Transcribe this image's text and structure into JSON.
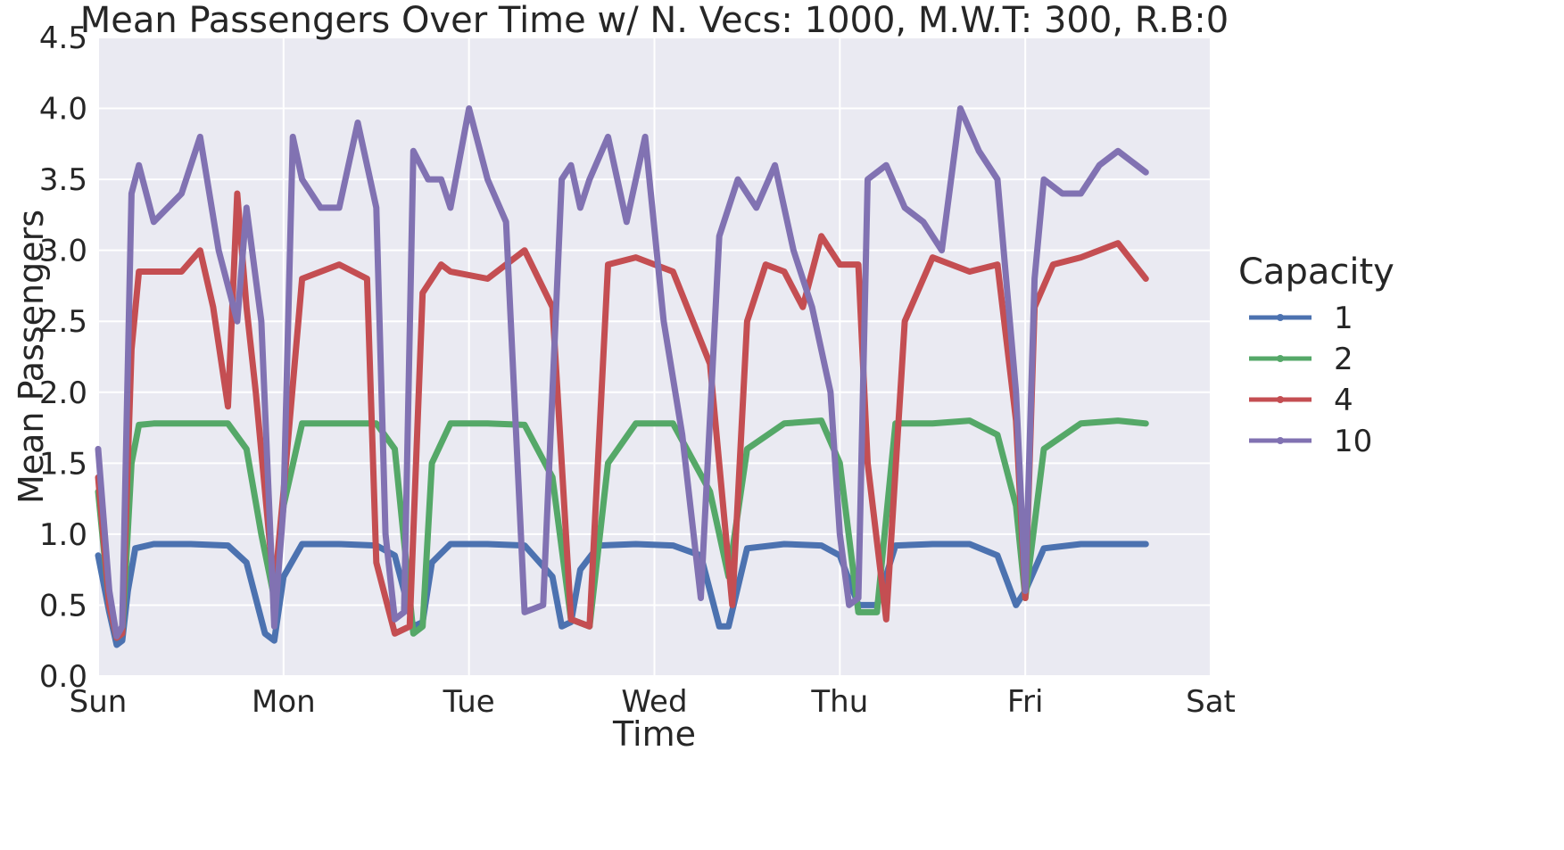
{
  "chart_data": {
    "type": "line",
    "title": "Mean Passengers Over Time w/ N. Vecs: 1000, M.W.T: 300, R.B:0",
    "xlabel": "Time",
    "ylabel": "Mean Passengers",
    "x_ticks": [
      "Sun",
      "Mon",
      "Tue",
      "Wed",
      "Thu",
      "Fri",
      "Sat"
    ],
    "xlim": [
      0,
      6
    ],
    "ylim": [
      0,
      4.5
    ],
    "y_ticks": [
      "0.0",
      "0.5",
      "1.0",
      "1.5",
      "2.0",
      "2.5",
      "3.0",
      "3.5",
      "4.0",
      "4.5"
    ],
    "grid": true,
    "legend": {
      "title": "Capacity",
      "placement": "right",
      "entries": [
        "1",
        "2",
        "4",
        "10"
      ]
    },
    "series": [
      {
        "name": "1",
        "color": "#4c72b0",
        "x": [
          0,
          0.06,
          0.1,
          0.13,
          0.16,
          0.2,
          0.3,
          0.5,
          0.7,
          0.8,
          0.9,
          0.95,
          1.0,
          1.1,
          1.3,
          1.5,
          1.6,
          1.7,
          1.75,
          1.8,
          1.9,
          2.1,
          2.3,
          2.45,
          2.5,
          2.55,
          2.6,
          2.7,
          2.9,
          3.1,
          3.25,
          3.35,
          3.4,
          3.5,
          3.7,
          3.9,
          4.0,
          4.1,
          4.2,
          4.3,
          4.5,
          4.7,
          4.85,
          4.95,
          5.0,
          5.1,
          5.3,
          5.5,
          5.65
        ],
        "y": [
          0.85,
          0.45,
          0.22,
          0.25,
          0.6,
          0.9,
          0.93,
          0.93,
          0.92,
          0.8,
          0.3,
          0.25,
          0.7,
          0.93,
          0.93,
          0.92,
          0.85,
          0.35,
          0.38,
          0.8,
          0.93,
          0.93,
          0.92,
          0.7,
          0.35,
          0.38,
          0.75,
          0.92,
          0.93,
          0.92,
          0.85,
          0.35,
          0.35,
          0.9,
          0.93,
          0.92,
          0.85,
          0.5,
          0.5,
          0.92,
          0.93,
          0.93,
          0.85,
          0.5,
          0.6,
          0.9,
          0.93,
          0.93,
          0.93
        ]
      },
      {
        "name": "2",
        "color": "#55a868",
        "x": [
          0,
          0.06,
          0.1,
          0.13,
          0.18,
          0.22,
          0.3,
          0.5,
          0.7,
          0.8,
          0.88,
          0.95,
          1.0,
          1.1,
          1.3,
          1.5,
          1.6,
          1.7,
          1.75,
          1.8,
          1.9,
          2.1,
          2.3,
          2.45,
          2.55,
          2.65,
          2.75,
          2.9,
          3.1,
          3.3,
          3.4,
          3.5,
          3.7,
          3.9,
          4.0,
          4.1,
          4.2,
          4.3,
          4.5,
          4.7,
          4.85,
          4.95,
          5.0,
          5.1,
          5.3,
          5.5,
          5.65
        ],
        "y": [
          1.3,
          0.5,
          0.27,
          0.3,
          1.5,
          1.77,
          1.78,
          1.78,
          1.78,
          1.6,
          1.0,
          0.55,
          1.2,
          1.78,
          1.78,
          1.78,
          1.6,
          0.3,
          0.35,
          1.5,
          1.78,
          1.78,
          1.77,
          1.4,
          0.4,
          0.35,
          1.5,
          1.78,
          1.78,
          1.3,
          0.7,
          1.6,
          1.78,
          1.8,
          1.5,
          0.45,
          0.45,
          1.78,
          1.78,
          1.8,
          1.7,
          1.2,
          0.55,
          1.6,
          1.78,
          1.8,
          1.78
        ]
      },
      {
        "name": "4",
        "color": "#c44e52",
        "x": [
          0,
          0.06,
          0.1,
          0.13,
          0.18,
          0.22,
          0.3,
          0.45,
          0.55,
          0.62,
          0.7,
          0.75,
          0.8,
          0.85,
          0.95,
          1.0,
          1.1,
          1.3,
          1.45,
          1.5,
          1.6,
          1.68,
          1.75,
          1.85,
          1.9,
          2.1,
          2.3,
          2.45,
          2.55,
          2.65,
          2.75,
          2.9,
          3.1,
          3.3,
          3.42,
          3.5,
          3.6,
          3.7,
          3.8,
          3.9,
          4.0,
          4.1,
          4.15,
          4.25,
          4.35,
          4.5,
          4.7,
          4.85,
          4.95,
          5.0,
          5.05,
          5.15,
          5.3,
          5.5,
          5.65
        ],
        "y": [
          1.4,
          0.5,
          0.27,
          0.3,
          2.3,
          2.85,
          2.85,
          2.85,
          3.0,
          2.6,
          1.9,
          3.4,
          2.6,
          2.0,
          0.6,
          1.3,
          2.8,
          2.9,
          2.8,
          0.8,
          0.3,
          0.35,
          2.7,
          2.9,
          2.85,
          2.8,
          3.0,
          2.6,
          0.4,
          0.35,
          2.9,
          2.95,
          2.85,
          2.2,
          0.5,
          2.5,
          2.9,
          2.85,
          2.6,
          3.1,
          2.9,
          2.9,
          1.5,
          0.4,
          2.5,
          2.95,
          2.85,
          2.9,
          1.8,
          0.55,
          2.6,
          2.9,
          2.95,
          3.05,
          2.8
        ]
      },
      {
        "name": "10",
        "color": "#8172b2",
        "x": [
          0,
          0.06,
          0.1,
          0.13,
          0.18,
          0.22,
          0.3,
          0.45,
          0.55,
          0.65,
          0.75,
          0.8,
          0.88,
          0.95,
          1.0,
          1.05,
          1.1,
          1.2,
          1.3,
          1.4,
          1.5,
          1.55,
          1.6,
          1.65,
          1.7,
          1.78,
          1.85,
          1.9,
          2.0,
          2.1,
          2.2,
          2.3,
          2.4,
          2.5,
          2.55,
          2.6,
          2.65,
          2.75,
          2.85,
          2.95,
          3.05,
          3.15,
          3.25,
          3.35,
          3.45,
          3.55,
          3.65,
          3.75,
          3.85,
          3.95,
          4.0,
          4.05,
          4.1,
          4.15,
          4.25,
          4.35,
          4.45,
          4.55,
          4.65,
          4.75,
          4.85,
          4.95,
          5.0,
          5.05,
          5.1,
          5.2,
          5.3,
          5.4,
          5.5,
          5.6,
          5.65
        ],
        "y": [
          1.6,
          0.6,
          0.28,
          0.35,
          3.4,
          3.6,
          3.2,
          3.4,
          3.8,
          3.0,
          2.5,
          3.3,
          2.5,
          0.35,
          1.2,
          3.8,
          3.5,
          3.3,
          3.3,
          3.9,
          3.3,
          1.0,
          0.4,
          0.45,
          3.7,
          3.5,
          3.5,
          3.3,
          4.0,
          3.5,
          3.2,
          0.45,
          0.5,
          3.5,
          3.6,
          3.3,
          3.5,
          3.8,
          3.2,
          3.8,
          2.5,
          1.7,
          0.55,
          3.1,
          3.5,
          3.3,
          3.6,
          3.0,
          2.6,
          2.0,
          1.0,
          0.5,
          0.55,
          3.5,
          3.6,
          3.3,
          3.2,
          3.0,
          4.0,
          3.7,
          3.5,
          2.0,
          0.6,
          2.8,
          3.5,
          3.4,
          3.4,
          3.6,
          3.7,
          3.6,
          3.55
        ]
      }
    ]
  }
}
